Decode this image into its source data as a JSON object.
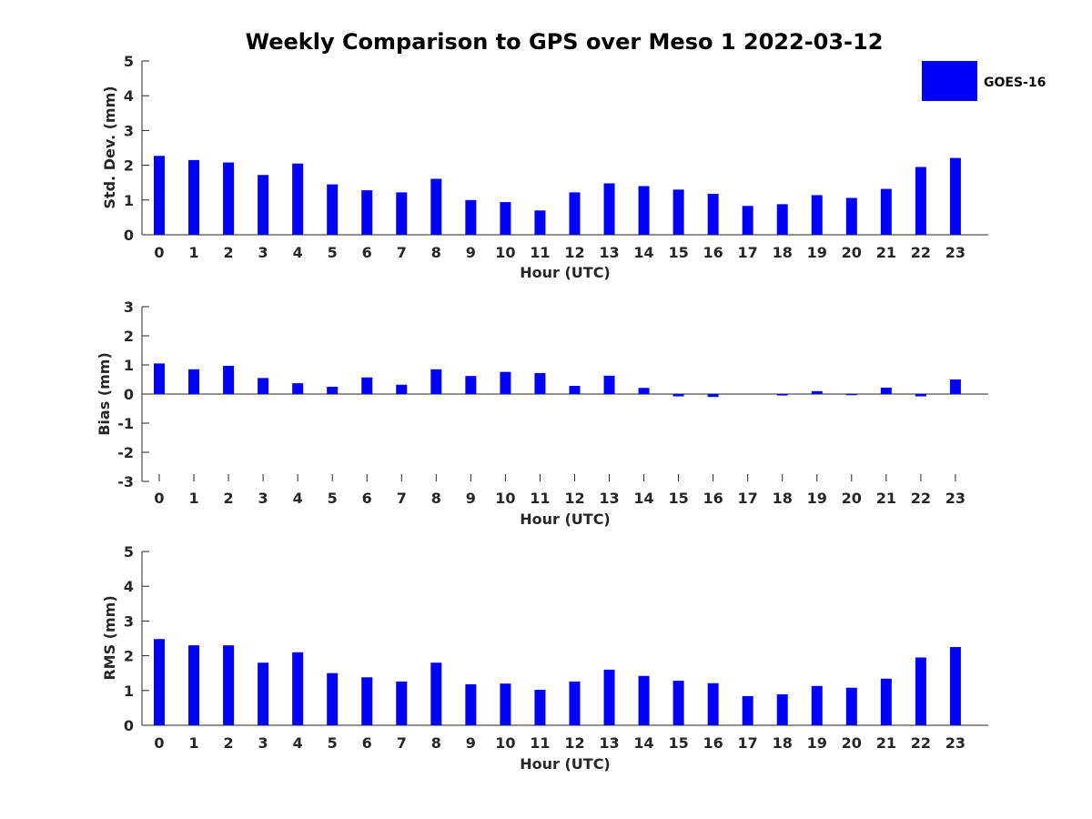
{
  "chart_data": {
    "title": "Weekly Comparison to GPS over Meso 1 2022-03-12",
    "legend": {
      "entries": [
        "GOES-16"
      ],
      "placement": "top-right"
    },
    "bar_color": "#0000ff",
    "categories": [
      "0",
      "1",
      "2",
      "3",
      "4",
      "5",
      "6",
      "7",
      "8",
      "9",
      "10",
      "11",
      "12",
      "13",
      "14",
      "15",
      "16",
      "17",
      "18",
      "19",
      "20",
      "21",
      "22",
      "23"
    ],
    "panels": [
      {
        "type": "bar",
        "xlabel": "Hour (UTC)",
        "ylabel": "Std. Dev. (mm)",
        "ylim": [
          0,
          5
        ],
        "yticks": [
          "0",
          "1",
          "2",
          "3",
          "4",
          "5"
        ],
        "series": [
          {
            "name": "GOES-16",
            "values": [
              2.27,
              2.15,
              2.08,
              1.72,
              2.05,
              1.45,
              1.28,
              1.22,
              1.61,
              1.0,
              0.94,
              0.7,
              1.22,
              1.48,
              1.4,
              1.3,
              1.18,
              0.83,
              0.88,
              1.14,
              1.06,
              1.32,
              1.95,
              2.21
            ]
          }
        ]
      },
      {
        "type": "bar",
        "xlabel": "Hour (UTC)",
        "ylabel": "Bias (mm)",
        "ylim": [
          -3,
          3
        ],
        "yticks": [
          "-3",
          "-2",
          "-1",
          "0",
          "1",
          "2",
          "3"
        ],
        "series": [
          {
            "name": "GOES-16",
            "values": [
              1.05,
              0.85,
              0.97,
              0.55,
              0.37,
              0.25,
              0.57,
              0.32,
              0.85,
              0.62,
              0.76,
              0.72,
              0.28,
              0.63,
              0.21,
              -0.08,
              -0.1,
              0.0,
              -0.05,
              0.1,
              -0.04,
              0.22,
              -0.08,
              0.5
            ]
          }
        ]
      },
      {
        "type": "bar",
        "xlabel": "Hour (UTC)",
        "ylabel": "RMS (mm)",
        "ylim": [
          0,
          5
        ],
        "yticks": [
          "0",
          "1",
          "2",
          "3",
          "4",
          "5"
        ],
        "series": [
          {
            "name": "GOES-16",
            "values": [
              2.48,
              2.3,
              2.3,
              1.8,
              2.1,
              1.5,
              1.38,
              1.26,
              1.8,
              1.18,
              1.2,
              1.02,
              1.26,
              1.6,
              1.42,
              1.28,
              1.21,
              0.84,
              0.89,
              1.13,
              1.08,
              1.34,
              1.95,
              2.25
            ]
          }
        ]
      }
    ]
  }
}
